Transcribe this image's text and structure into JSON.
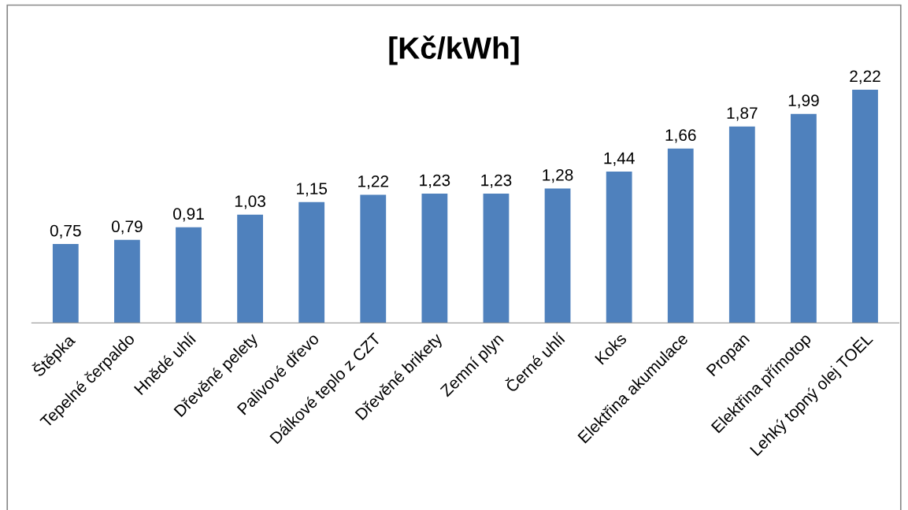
{
  "chart_data": {
    "type": "bar",
    "title": "[Kč/kWh]",
    "categories": [
      "Štěpka",
      "Tepelné čerpaldo",
      "Hnědé uhlí",
      "Dřevěné pelety",
      "Palivové dřevo",
      "Dálkové teplo z CZT",
      "Dřevěné brikety",
      "Zemní plyn",
      "Černé uhlí",
      "Koks",
      "Elektřina akumulace",
      "Propan",
      "Elektřina přímotop",
      "Lehký topný olej TOEL"
    ],
    "values": [
      0.75,
      0.79,
      0.91,
      1.03,
      1.15,
      1.22,
      1.23,
      1.23,
      1.28,
      1.44,
      1.66,
      1.87,
      1.99,
      2.22
    ],
    "value_labels": [
      "0,75",
      "0,79",
      "0,91",
      "1,03",
      "1,15",
      "1,22",
      "1,23",
      "1,23",
      "1,28",
      "1,44",
      "1,66",
      "1,87",
      "1,99",
      "2,22"
    ],
    "color": "#4f81bd",
    "grid": false,
    "legend": false
  }
}
